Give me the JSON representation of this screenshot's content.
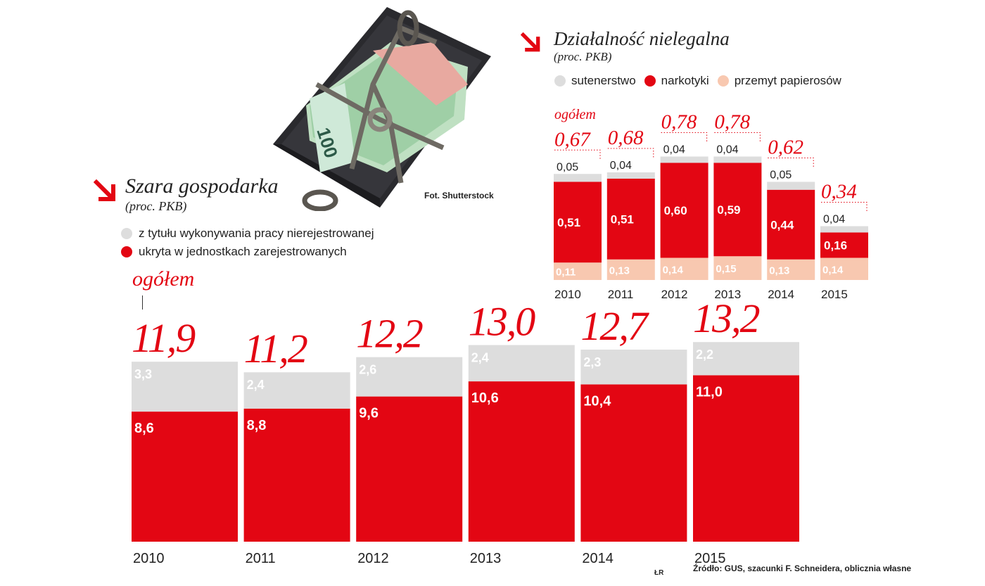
{
  "photo": {
    "credit": "Fot. Shutterstock"
  },
  "colors": {
    "red": "#e30613",
    "grey": "#dddddd",
    "peach": "#f8c8b0",
    "text": "#222222"
  },
  "icons": {
    "section_marker": "arrow-down-right-icon"
  },
  "footer": {
    "source": "Źródło: GUS, szacunki F. Schneidera, oblicznia własne",
    "initials": "ŁR"
  },
  "chart_data": [
    {
      "type": "bar",
      "stacked": true,
      "title": "Szara gospodarka",
      "subtitle": "(proc. PKB)",
      "total_label": "ogółem",
      "categories": [
        "2010",
        "2011",
        "2012",
        "2013",
        "2014",
        "2015"
      ],
      "series": [
        {
          "name": "ukryta w jednostkach zarejestrowanych",
          "color": "#e30613",
          "values": [
            8.6,
            8.8,
            9.6,
            10.6,
            10.4,
            11.0
          ],
          "labels": [
            "8,6",
            "8,8",
            "9,6",
            "10,6",
            "10,4",
            "11,0"
          ]
        },
        {
          "name": "z tytułu wykonywania pracy nierejestrowanej",
          "color": "#dddddd",
          "values": [
            3.3,
            2.4,
            2.6,
            2.4,
            2.3,
            2.2
          ],
          "labels": [
            "3,3",
            "2,4",
            "2,6",
            "2,4",
            "2,3",
            "2,2"
          ]
        }
      ],
      "totals": [
        11.9,
        11.2,
        12.2,
        13.0,
        12.7,
        13.2
      ],
      "total_labels": [
        "11,9",
        "11,2",
        "12,2",
        "13,0",
        "12,7",
        "13,2"
      ],
      "legend": [
        {
          "name": "z tytułu wykonywania pracy nierejestrowanej",
          "color": "#dddddd"
        },
        {
          "name": "ukryta w jednostkach zarejestrowanych",
          "color": "#e30613"
        }
      ]
    },
    {
      "type": "bar",
      "stacked": true,
      "title": "Działalność nielegalna",
      "subtitle": "(proc. PKB)",
      "total_label": "ogółem",
      "categories": [
        "2010",
        "2011",
        "2012",
        "2013",
        "2014",
        "2015"
      ],
      "series": [
        {
          "name": "przemyt papierosów",
          "color": "#f8c8b0",
          "values": [
            0.11,
            0.13,
            0.14,
            0.15,
            0.13,
            0.14
          ],
          "labels": [
            "0,11",
            "0,13",
            "0,14",
            "0,15",
            "0,13",
            "0,14"
          ]
        },
        {
          "name": "narkotyki",
          "color": "#e30613",
          "values": [
            0.51,
            0.51,
            0.6,
            0.59,
            0.44,
            0.16
          ],
          "labels": [
            "0,51",
            "0,51",
            "0,60",
            "0,59",
            "0,44",
            "0,16"
          ]
        },
        {
          "name": "sutenerstwo",
          "color": "#dddddd",
          "values": [
            0.05,
            0.04,
            0.04,
            0.04,
            0.05,
            0.04
          ],
          "labels": [
            "0,05",
            "0,04",
            "0,04",
            "0,04",
            "0,05",
            "0,04"
          ]
        }
      ],
      "totals": [
        0.67,
        0.68,
        0.78,
        0.78,
        0.62,
        0.34
      ],
      "total_labels": [
        "0,67",
        "0,68",
        "0,78",
        "0,78",
        "0,62",
        "0,34"
      ],
      "legend": [
        {
          "name": "sutenerstwo",
          "color": "#dddddd"
        },
        {
          "name": "narkotyki",
          "color": "#e30613"
        },
        {
          "name": "przemyt papierosów",
          "color": "#f8c8b0"
        }
      ]
    }
  ]
}
